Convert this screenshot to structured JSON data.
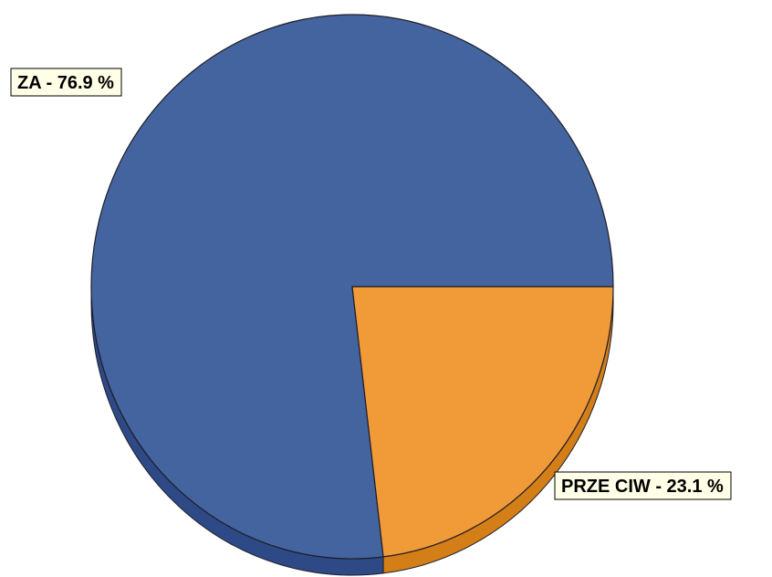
{
  "chart_data": {
    "type": "pie",
    "style": "3d-tilted",
    "slices": [
      {
        "category": "ZA",
        "label": "ZA - 76.9 %",
        "value": 76.9,
        "color": "#4464a0",
        "side_color": "#2e4a86"
      },
      {
        "category": "PRZECIW",
        "label": "PRZE CIW - 23.1 %",
        "value": 23.1,
        "color": "#f09a38",
        "side_color": "#d47e18"
      }
    ],
    "label_box_fill": "#ffffe8",
    "edge_color": "#1e1e28"
  }
}
